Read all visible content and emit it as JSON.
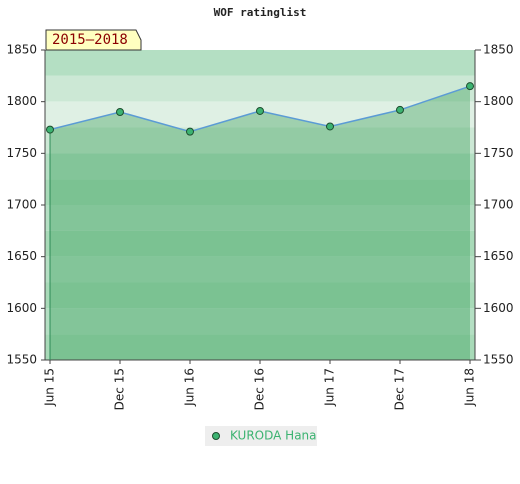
{
  "chart_data": {
    "type": "line",
    "title": "WOF ratinglist",
    "annotation": "2015–2018",
    "categories": [
      "Jun 15",
      "Dec 15",
      "Jun 16",
      "Dec 16",
      "Jun 17",
      "Dec 17",
      "Jun 18"
    ],
    "series": [
      {
        "name": "KURODA Hana",
        "color": "#5b9bd5",
        "values": [
          1773,
          1790,
          1771,
          1791,
          1776,
          1792,
          1815
        ]
      }
    ],
    "ylim": [
      1550,
      1850
    ],
    "yticks": [
      1550,
      1600,
      1650,
      1700,
      1750,
      1800,
      1850
    ],
    "y2lim": [
      1550,
      1850
    ],
    "y2ticks": [
      1550,
      1600,
      1650,
      1700,
      1750,
      1800,
      1850
    ]
  }
}
